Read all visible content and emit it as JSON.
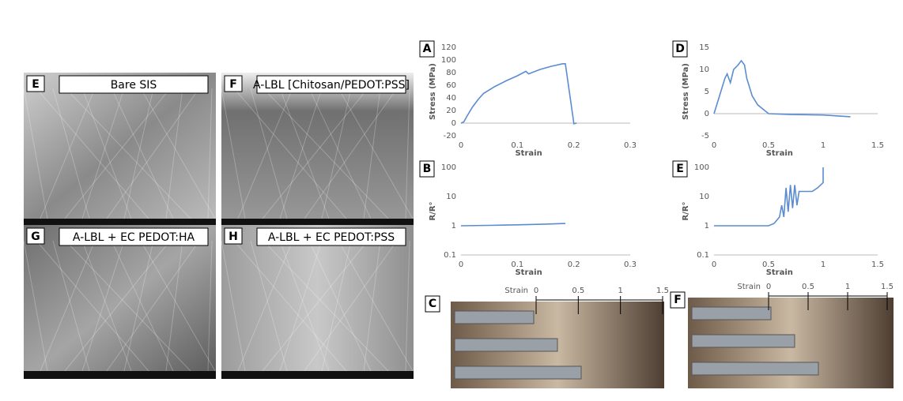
{
  "sem_panels": [
    {
      "label": "E",
      "caption": "Bare SIS"
    },
    {
      "label": "F",
      "caption": "A-LBL [Chitosan/PEDOT:PSS]"
    },
    {
      "label": "G",
      "caption": "A-LBL + EC PEDOT:HA"
    },
    {
      "label": "H",
      "caption": "A-LBL + EC PEDOT:PSS"
    }
  ],
  "chart_data": [
    {
      "type": "line",
      "panel": "A",
      "xlabel": "Strain",
      "ylabel": "Stress (MPa)",
      "color": "#5b8ccf",
      "log_y": false,
      "x": [
        0,
        0.005,
        0.01,
        0.02,
        0.03,
        0.04,
        0.06,
        0.08,
        0.1,
        0.115,
        0.12,
        0.14,
        0.16,
        0.18,
        0.185,
        0.2,
        0.2,
        0.205
      ],
      "values": [
        0,
        2,
        10,
        25,
        37,
        47,
        58,
        67,
        75,
        82,
        78,
        85,
        90,
        94,
        94,
        0,
        -1,
        0
      ],
      "xlim": [
        0,
        0.3
      ],
      "xticks": [
        0,
        0.1,
        0.2,
        0.3
      ],
      "ylim": [
        -20,
        120
      ],
      "yticks": [
        -20,
        0,
        20,
        40,
        60,
        80,
        100,
        120
      ]
    },
    {
      "type": "line",
      "panel": "B",
      "xlabel": "Strain",
      "ylabel": "R/R°",
      "color": "#5b8ccf",
      "log_y": true,
      "x": [
        0,
        0.05,
        0.1,
        0.15,
        0.185
      ],
      "values": [
        1,
        1.03,
        1.08,
        1.14,
        1.2
      ],
      "xlim": [
        0,
        0.3
      ],
      "xticks": [
        0,
        0.1,
        0.2,
        0.3
      ],
      "ylim": [
        0.1,
        100
      ],
      "yticks": [
        0.1,
        1,
        10,
        100
      ]
    },
    {
      "type": "line",
      "panel": "D",
      "xlabel": "Strain",
      "ylabel": "Stress (MPa)",
      "color": "#5b8ccf",
      "log_y": false,
      "x": [
        0,
        0.05,
        0.1,
        0.12,
        0.15,
        0.18,
        0.22,
        0.25,
        0.28,
        0.3,
        0.35,
        0.4,
        0.5,
        0.7,
        1,
        1.25
      ],
      "values": [
        0,
        4,
        8,
        9,
        7,
        10,
        11,
        12,
        11,
        8,
        4,
        2,
        0,
        -0.2,
        -0.3,
        -0.7
      ],
      "xlim": [
        0,
        1.5
      ],
      "xticks": [
        0,
        0.5,
        1,
        1.5
      ],
      "ylim": [
        -5,
        15
      ],
      "yticks": [
        -5,
        0,
        5,
        10,
        15
      ]
    },
    {
      "type": "line",
      "panel": "E",
      "xlabel": "Strain",
      "ylabel": "R/R°",
      "color": "#5b8ccf",
      "log_y": true,
      "x": [
        0,
        0.5,
        0.55,
        0.6,
        0.62,
        0.64,
        0.66,
        0.68,
        0.7,
        0.72,
        0.74,
        0.76,
        0.78,
        0.9,
        0.95,
        1,
        1
      ],
      "values": [
        1,
        1,
        1.2,
        2,
        5,
        2,
        20,
        3,
        25,
        4,
        25,
        5,
        15,
        15,
        20,
        30,
        100
      ],
      "xlim": [
        0,
        1.5
      ],
      "xticks": [
        0,
        0.5,
        1,
        1.5
      ],
      "ylim": [
        0.1,
        100
      ],
      "yticks": [
        0.1,
        1,
        10,
        100
      ]
    }
  ],
  "photo_panels": [
    {
      "label": "C",
      "axis_label": "Strain",
      "ticks": [
        0,
        0.5,
        1,
        1.5
      ]
    },
    {
      "label": "F",
      "axis_label": "Strain",
      "ticks": [
        0,
        0.5,
        1,
        1.5
      ]
    }
  ]
}
